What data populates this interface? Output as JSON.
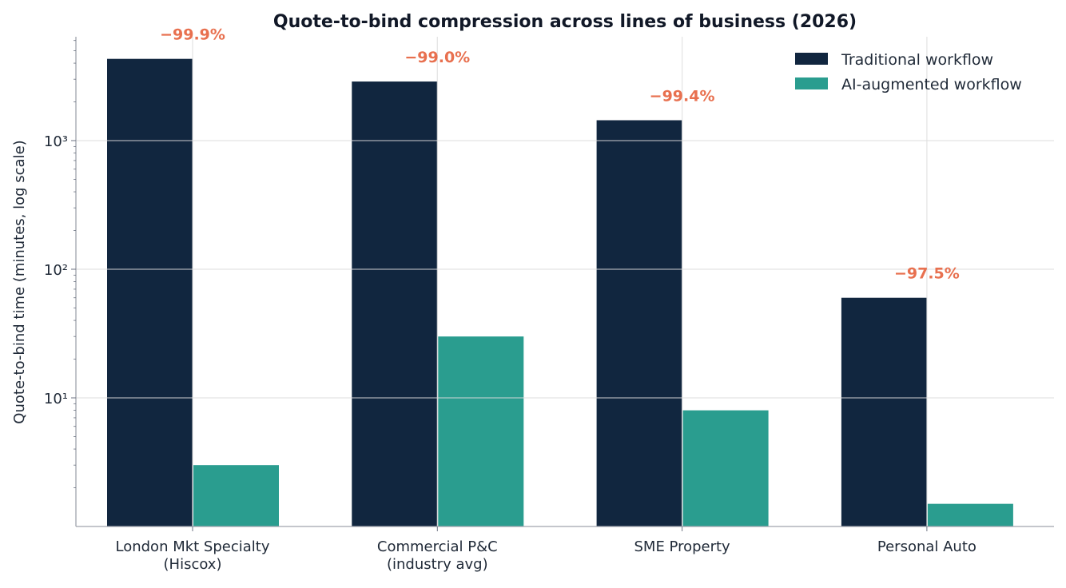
{
  "chart_data": {
    "type": "bar",
    "title": "Quote-to-bind compression across lines of business (2026)",
    "xlabel": "",
    "ylabel": "Quote-to-bind time (minutes, log scale)",
    "yscale": "log",
    "ylim": [
      1,
      6400
    ],
    "y_ticks": [
      {
        "value": 10,
        "label": "10¹"
      },
      {
        "value": 100,
        "label": "10²"
      },
      {
        "value": 1000,
        "label": "10³"
      }
    ],
    "grid": true,
    "legend_position": "top-right",
    "categories": [
      [
        "London Mkt Specialty",
        "(Hiscox)"
      ],
      [
        "Commercial P&C",
        "(industry avg)"
      ],
      [
        "SME Property"
      ],
      [
        "Personal Auto"
      ]
    ],
    "series": [
      {
        "name": "Traditional workflow",
        "color": "#11263f",
        "values": [
          4320,
          2880,
          1440,
          60
        ]
      },
      {
        "name": "AI-augmented workflow",
        "color": "#2a9d8f",
        "values": [
          3,
          30,
          8,
          1.5
        ]
      }
    ],
    "annotations": [
      "−99.9%",
      "−99.0%",
      "−99.4%",
      "−97.5%"
    ],
    "annotation_color": "#e8704f"
  }
}
